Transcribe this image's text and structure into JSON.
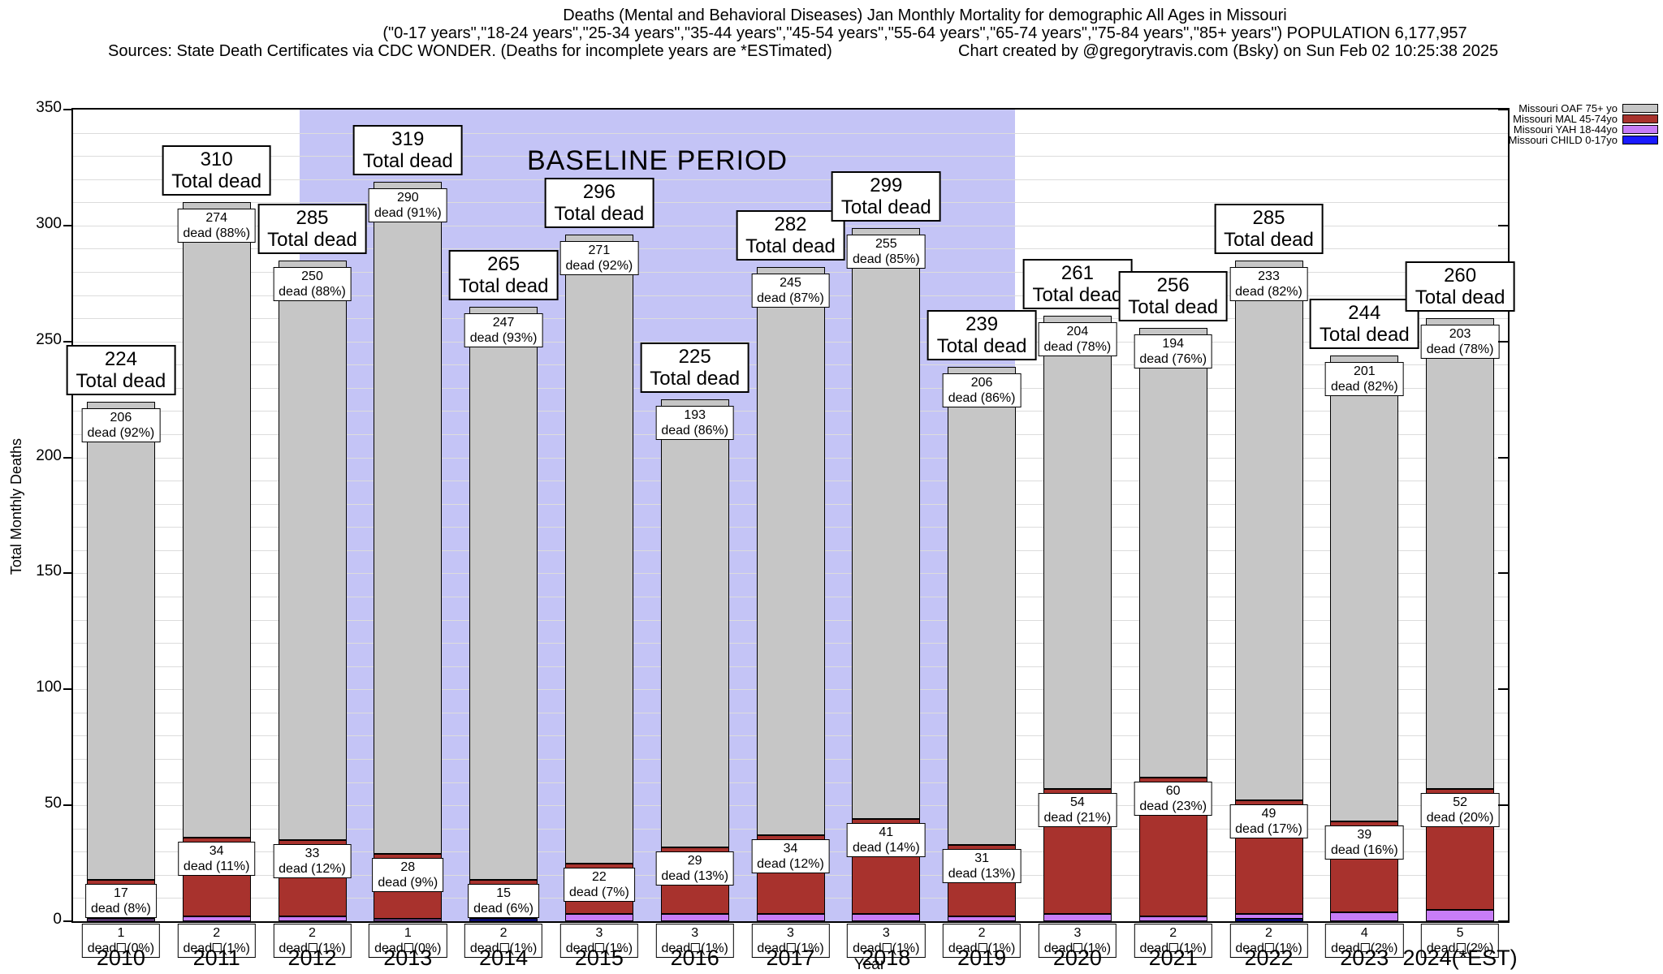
{
  "header": {
    "line1": "Deaths (Mental and Behavioral Diseases) Jan Monthly Mortality for demographic All Ages in Missouri",
    "line2": "(\"0-17 years\",\"18-24 years\",\"25-34 years\",\"35-44 years\",\"45-54 years\",\"55-64 years\",\"65-74 years\",\"75-84 years\",\"85+ years\") POPULATION 6,177,957",
    "line3_left": "Sources: State Death Certificates via CDC WONDER. (Deaths for incomplete years are *ESTimated)",
    "line3_right": "Chart created by @gregorytravis.com (Bsky) on Sun Feb 02 10:25:38 2025"
  },
  "legend": {
    "items": [
      {
        "label": "Missouri OAF 75+ yo",
        "color": "#c6c6c6"
      },
      {
        "label": "Missouri MAL 45-74yo",
        "color": "#a8322d"
      },
      {
        "label": "Missouri YAH 18-44yo",
        "color": "#c77df7"
      },
      {
        "label": "Missouri CHILD 0-17yo",
        "color": "#1a1aff"
      }
    ]
  },
  "chart_data": {
    "type": "bar",
    "stacked": true,
    "title": "Deaths (Mental and Behavioral Diseases) Jan Monthly Mortality for demographic All Ages in Missouri",
    "xlabel": "Year",
    "ylabel": "Total Monthly Deaths",
    "ylim": [
      0,
      350
    ],
    "ytick_step": 50,
    "minor_gridline_step": 10,
    "grid": true,
    "legend_position": "top-right-outside",
    "baseline_period": {
      "label": "BASELINE PERIOD",
      "start_category": "2012",
      "end_category": "2019",
      "color": "#c4c4f6"
    },
    "total_label_text": "Total dead",
    "dead_word": "dead",
    "series_meta": [
      {
        "key": "child",
        "name": "Missouri CHILD 0-17yo",
        "color": "#1a1aff"
      },
      {
        "key": "yah",
        "name": "Missouri YAH 18-44yo",
        "color": "#c77df7"
      },
      {
        "key": "mal",
        "name": "Missouri MAL 45-74yo",
        "color": "#a8322d"
      },
      {
        "key": "oaf",
        "name": "Missouri OAF 75+ yo",
        "color": "#c6c6c6"
      }
    ],
    "years": [
      {
        "x": "2010",
        "total": 224,
        "segments": {
          "child": {
            "count": 0
          },
          "yah": {
            "count": 1,
            "pct": "0%"
          },
          "mal": {
            "count": 17,
            "pct": "8%"
          },
          "oaf": {
            "count": 206,
            "pct": "92%"
          }
        }
      },
      {
        "x": "2011",
        "total": 310,
        "segments": {
          "child": {
            "count": 0
          },
          "yah": {
            "count": 2,
            "pct": "1%"
          },
          "mal": {
            "count": 34,
            "pct": "11%"
          },
          "oaf": {
            "count": 274,
            "pct": "88%"
          }
        }
      },
      {
        "x": "2012",
        "total": 285,
        "segments": {
          "child": {
            "count": 0
          },
          "yah": {
            "count": 2,
            "pct": "1%"
          },
          "mal": {
            "count": 33,
            "pct": "12%"
          },
          "oaf": {
            "count": 250,
            "pct": "88%"
          }
        }
      },
      {
        "x": "2013",
        "total": 319,
        "segments": {
          "child": {
            "count": 0
          },
          "yah": {
            "count": 1,
            "pct": "0%"
          },
          "mal": {
            "count": 28,
            "pct": "9%"
          },
          "oaf": {
            "count": 290,
            "pct": "91%"
          }
        }
      },
      {
        "x": "2014",
        "total": 265,
        "segments": {
          "child": {
            "count": 1
          },
          "yah": {
            "count": 2,
            "pct": "1%"
          },
          "mal": {
            "count": 15,
            "pct": "6%"
          },
          "oaf": {
            "count": 247,
            "pct": "93%"
          }
        }
      },
      {
        "x": "2015",
        "total": 296,
        "segments": {
          "child": {
            "count": 0
          },
          "yah": {
            "count": 3,
            "pct": "1%"
          },
          "mal": {
            "count": 22,
            "pct": "7%"
          },
          "oaf": {
            "count": 271,
            "pct": "92%"
          }
        }
      },
      {
        "x": "2016",
        "total": 225,
        "segments": {
          "child": {
            "count": 0
          },
          "yah": {
            "count": 3,
            "pct": "1%"
          },
          "mal": {
            "count": 29,
            "pct": "13%"
          },
          "oaf": {
            "count": 193,
            "pct": "86%"
          }
        }
      },
      {
        "x": "2017",
        "total": 282,
        "segments": {
          "child": {
            "count": 0
          },
          "yah": {
            "count": 3,
            "pct": "1%"
          },
          "mal": {
            "count": 34,
            "pct": "12%"
          },
          "oaf": {
            "count": 245,
            "pct": "87%"
          }
        }
      },
      {
        "x": "2018",
        "total": 299,
        "segments": {
          "child": {
            "count": 0
          },
          "yah": {
            "count": 3,
            "pct": "1%"
          },
          "mal": {
            "count": 41,
            "pct": "14%"
          },
          "oaf": {
            "count": 255,
            "pct": "85%"
          }
        }
      },
      {
        "x": "2019",
        "total": 239,
        "segments": {
          "child": {
            "count": 0
          },
          "yah": {
            "count": 2,
            "pct": "1%"
          },
          "mal": {
            "count": 31,
            "pct": "13%"
          },
          "oaf": {
            "count": 206,
            "pct": "86%"
          }
        }
      },
      {
        "x": "2020",
        "total": 261,
        "segments": {
          "child": {
            "count": 0
          },
          "yah": {
            "count": 3,
            "pct": "1%"
          },
          "mal": {
            "count": 54,
            "pct": "21%"
          },
          "oaf": {
            "count": 204,
            "pct": "78%"
          }
        }
      },
      {
        "x": "2021",
        "total": 256,
        "segments": {
          "child": {
            "count": 0
          },
          "yah": {
            "count": 2,
            "pct": "1%"
          },
          "mal": {
            "count": 60,
            "pct": "23%"
          },
          "oaf": {
            "count": 194,
            "pct": "76%"
          }
        }
      },
      {
        "x": "2022",
        "total": 285,
        "segments": {
          "child": {
            "count": 1
          },
          "yah": {
            "count": 2,
            "pct": "1%"
          },
          "mal": {
            "count": 49,
            "pct": "17%"
          },
          "oaf": {
            "count": 233,
            "pct": "82%"
          }
        }
      },
      {
        "x": "2023",
        "total": 244,
        "segments": {
          "child": {
            "count": 0
          },
          "yah": {
            "count": 4,
            "pct": "2%"
          },
          "mal": {
            "count": 39,
            "pct": "16%"
          },
          "oaf": {
            "count": 201,
            "pct": "82%"
          }
        }
      },
      {
        "x": "2024(*EST)",
        "total": 260,
        "segments": {
          "child": {
            "count": 0
          },
          "yah": {
            "count": 5,
            "pct": "2%"
          },
          "mal": {
            "count": 52,
            "pct": "20%"
          },
          "oaf": {
            "count": 203,
            "pct": "78%"
          }
        }
      }
    ]
  }
}
